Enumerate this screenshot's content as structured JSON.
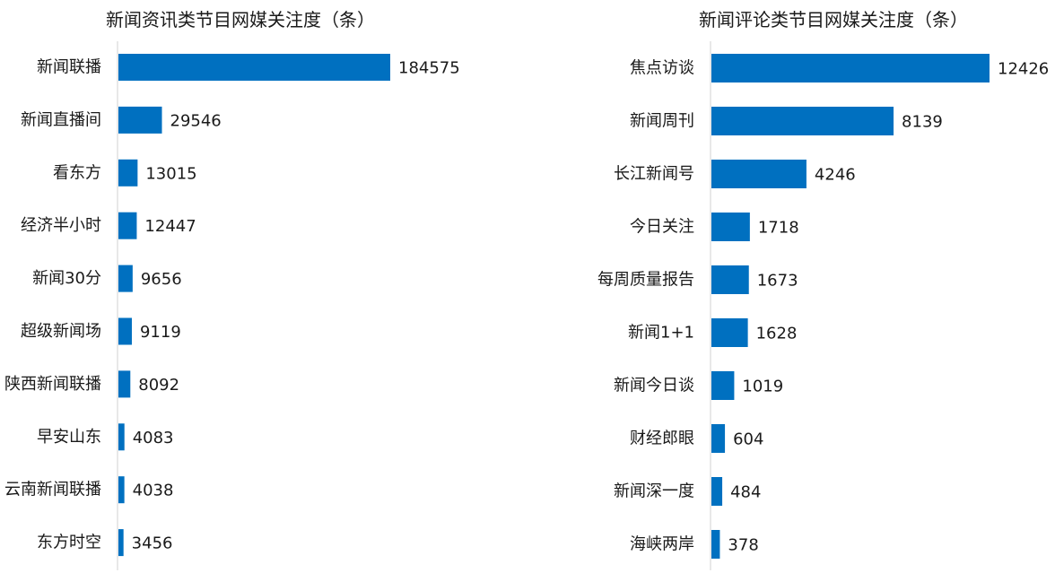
{
  "chart_data": [
    {
      "type": "bar",
      "orientation": "horizontal",
      "title": "新闻资讯类节目网媒关注度（条）",
      "categories": [
        "新闻联播",
        "新闻直播间",
        "看东方",
        "经济半小时",
        "新闻30分",
        "超级新闻场",
        "陕西新闻联播",
        "早安山东",
        "云南新闻联播",
        "东方时空"
      ],
      "values": [
        184575,
        29546,
        13015,
        12447,
        9656,
        9119,
        8092,
        4083,
        4038,
        3456
      ],
      "xlim": [
        0,
        184575
      ],
      "bar_color": "#0070c0",
      "grid": false
    },
    {
      "type": "bar",
      "orientation": "horizontal",
      "title": "新闻评论类节目网媒关注度（条）",
      "categories": [
        "焦点访谈",
        "新闻周刊",
        "长江新闻号",
        "今日关注",
        "每周质量报告",
        "新闻1+1",
        "新闻今日谈",
        "财经郎眼",
        "新闻深一度",
        "海峡两岸"
      ],
      "values": [
        12426,
        8139,
        4246,
        1718,
        1673,
        1628,
        1019,
        604,
        484,
        378
      ],
      "xlim": [
        0,
        12426
      ],
      "bar_color": "#0070c0",
      "grid": false
    }
  ]
}
